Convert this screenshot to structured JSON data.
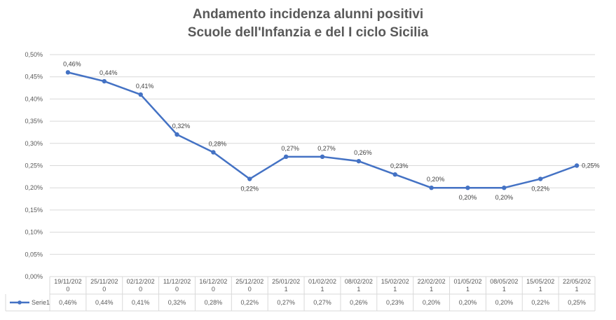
{
  "title_line1": "Andamento incidenza alunni positivi",
  "title_line2": "Scuole dell'Infanzia e del I ciclo Sicilia",
  "chart_data": {
    "type": "line",
    "title": "Andamento incidenza alunni positivi Scuole dell'Infanzia e del I ciclo Sicilia",
    "categories": [
      [
        "19/11/202",
        "0"
      ],
      [
        "25/11/202",
        "0"
      ],
      [
        "02/12/202",
        "0"
      ],
      [
        "11/12/202",
        "0"
      ],
      [
        "16/12/202",
        "0"
      ],
      [
        "25/12/202",
        "0"
      ],
      [
        "25/01/202",
        "1"
      ],
      [
        "01/02/202",
        "1"
      ],
      [
        "08/02/202",
        "1"
      ],
      [
        "15/02/202",
        "1"
      ],
      [
        "22/02/202",
        "1"
      ],
      [
        "01/05/202",
        "1"
      ],
      [
        "08/05/202",
        "1"
      ],
      [
        "15/05/202",
        "1"
      ],
      [
        "22/05/202",
        "1"
      ]
    ],
    "series": [
      {
        "name": "Serie1",
        "values": [
          0.46,
          0.44,
          0.41,
          0.32,
          0.28,
          0.22,
          0.27,
          0.27,
          0.26,
          0.23,
          0.2,
          0.2,
          0.2,
          0.22,
          0.25
        ],
        "labels": [
          "0,46%",
          "0,44%",
          "0,41%",
          "0,32%",
          "0,28%",
          "0,22%",
          "0,27%",
          "0,27%",
          "0,26%",
          "0,23%",
          "0,20%",
          "0,20%",
          "0,20%",
          "0,22%",
          "0,25%"
        ],
        "color": "#4472C4"
      }
    ],
    "y_ticks": [
      "0,00%",
      "0,05%",
      "0,10%",
      "0,15%",
      "0,20%",
      "0,25%",
      "0,30%",
      "0,35%",
      "0,40%",
      "0,45%",
      "0,50%"
    ],
    "ylim": [
      0,
      0.5
    ],
    "grid": true,
    "legend": "data table"
  }
}
